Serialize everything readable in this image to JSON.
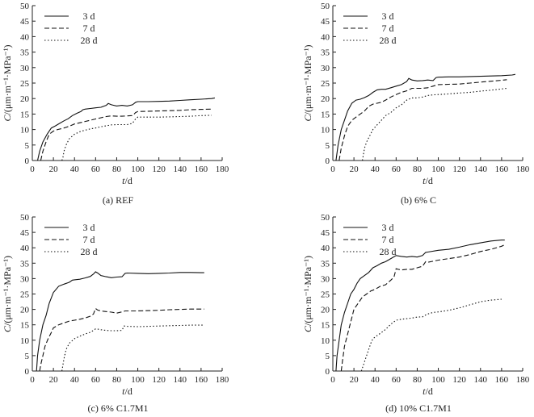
{
  "chart_data": [
    {
      "type": "line",
      "caption": "(a) REF",
      "xlabel": "t/d",
      "ylabel": "C/(μm·m⁻¹·MPa⁻¹)",
      "xlim": [
        0,
        180
      ],
      "ylim": [
        0,
        50
      ],
      "xticks": [
        0,
        20,
        40,
        60,
        80,
        100,
        120,
        140,
        160,
        180
      ],
      "yticks": [
        0,
        5,
        10,
        15,
        20,
        25,
        30,
        35,
        40,
        45,
        50
      ],
      "legend_position": "top-left",
      "series": [
        {
          "name": "3 d",
          "style": "solid",
          "x": [
            5,
            7,
            10,
            14,
            18,
            22,
            26,
            30,
            34,
            38,
            42,
            46,
            48,
            50,
            55,
            60,
            65,
            70,
            72,
            75,
            80,
            85,
            90,
            95,
            98,
            100,
            110,
            120,
            130,
            140,
            150,
            160,
            170,
            173
          ],
          "y": [
            0,
            3,
            6,
            8.5,
            10.5,
            11.2,
            12,
            12.8,
            13.5,
            14.5,
            15.2,
            15.8,
            16.4,
            16.6,
            16.8,
            17,
            17.2,
            17.8,
            18.4,
            18,
            17.6,
            17.8,
            17.6,
            18,
            18.8,
            19,
            19,
            19.1,
            19.2,
            19.4,
            19.6,
            19.8,
            20,
            20.2
          ]
        },
        {
          "name": "7 d",
          "style": "dashed",
          "x": [
            8,
            10,
            13,
            16,
            20,
            24,
            28,
            32,
            36,
            40,
            45,
            50,
            55,
            60,
            65,
            70,
            75,
            80,
            85,
            90,
            95,
            98,
            100,
            110,
            120,
            130,
            140,
            150,
            160,
            170
          ],
          "y": [
            0,
            3,
            6,
            8.5,
            9.5,
            10,
            10.3,
            10.7,
            11.2,
            11.8,
            12.2,
            12.6,
            13,
            13.4,
            13.8,
            14.2,
            14.4,
            14.3,
            14.3,
            14.4,
            14.5,
            15.5,
            15.8,
            15.9,
            16,
            16.1,
            16.2,
            16.4,
            16.5,
            16.6
          ]
        },
        {
          "name": "28 d",
          "style": "dotted",
          "x": [
            28,
            29,
            30,
            32,
            35,
            40,
            45,
            50,
            55,
            60,
            65,
            70,
            75,
            80,
            85,
            90,
            95,
            98,
            100,
            110,
            120,
            130,
            140,
            150,
            160,
            170
          ],
          "y": [
            0,
            1,
            3,
            5,
            7,
            8.5,
            9.3,
            9.8,
            10.2,
            10.5,
            10.9,
            11.2,
            11.5,
            11.6,
            11.6,
            11.6,
            12,
            13.5,
            14,
            14,
            14,
            14.1,
            14.2,
            14.3,
            14.5,
            14.6
          ]
        }
      ]
    },
    {
      "type": "line",
      "caption": "(b) 6% C",
      "xlabel": "t/d",
      "ylabel": "C/(μm·m⁻¹·MPa⁻¹)",
      "xlim": [
        0,
        180
      ],
      "ylim": [
        0,
        50
      ],
      "xticks": [
        0,
        20,
        40,
        60,
        80,
        100,
        120,
        140,
        160,
        180
      ],
      "yticks": [
        0,
        5,
        10,
        15,
        20,
        25,
        30,
        35,
        40,
        45,
        50
      ],
      "legend_position": "top-left",
      "series": [
        {
          "name": "3 d",
          "style": "solid",
          "x": [
            3,
            5,
            8,
            11,
            14,
            18,
            22,
            26,
            30,
            34,
            38,
            42,
            46,
            50,
            55,
            60,
            65,
            70,
            72,
            75,
            80,
            85,
            90,
            95,
            98,
            100,
            110,
            120,
            130,
            140,
            150,
            160,
            170,
            173
          ],
          "y": [
            0,
            5,
            10,
            13,
            16,
            18.5,
            19.5,
            19.8,
            20.3,
            21,
            22,
            22.8,
            23,
            23,
            23.5,
            24,
            24.5,
            25.5,
            26.5,
            26,
            25.7,
            25.8,
            26,
            25.8,
            26.8,
            26.9,
            27,
            27,
            27.1,
            27.2,
            27.3,
            27.4,
            27.6,
            27.8
          ]
        },
        {
          "name": "7 d",
          "style": "dashed",
          "x": [
            6,
            8,
            11,
            14,
            18,
            22,
            26,
            30,
            34,
            38,
            42,
            46,
            50,
            55,
            60,
            65,
            70,
            75,
            80,
            85,
            90,
            95,
            100,
            110,
            120,
            130,
            140,
            150,
            160,
            165
          ],
          "y": [
            0,
            4,
            8,
            11,
            13,
            14,
            15,
            16,
            17.5,
            18.2,
            18.5,
            18.8,
            19.5,
            20.5,
            21.3,
            22,
            22.5,
            23.3,
            23.3,
            23.3,
            23.5,
            24,
            24.5,
            24.6,
            24.7,
            25,
            25.3,
            25.6,
            25.9,
            26.1
          ]
        },
        {
          "name": "28 d",
          "style": "dotted",
          "x": [
            28,
            29,
            30,
            32,
            35,
            38,
            42,
            46,
            50,
            55,
            60,
            65,
            70,
            75,
            80,
            85,
            90,
            95,
            100,
            110,
            120,
            130,
            140,
            150,
            160,
            165
          ],
          "y": [
            0,
            2,
            4,
            6,
            8,
            10,
            11.5,
            13,
            14.5,
            15.5,
            17,
            18,
            19.5,
            20.2,
            20.2,
            20.5,
            21,
            21.2,
            21.3,
            21.5,
            21.8,
            22,
            22.4,
            22.7,
            23.1,
            23.3
          ]
        }
      ]
    },
    {
      "type": "line",
      "caption": "(c) 6% C1.7M1",
      "xlabel": "t/d",
      "ylabel": "C/(μm·m⁻¹·MPa⁻¹)",
      "xlim": [
        0,
        180
      ],
      "ylim": [
        0,
        50
      ],
      "xticks": [
        0,
        20,
        40,
        60,
        80,
        100,
        120,
        140,
        160,
        180
      ],
      "yticks": [
        0,
        5,
        10,
        15,
        20,
        25,
        30,
        35,
        40,
        45,
        50
      ],
      "legend_position": "top-right",
      "series": [
        {
          "name": "3 d",
          "style": "solid",
          "x": [
            4,
            5,
            7,
            10,
            13,
            16,
            20,
            25,
            30,
            35,
            38,
            40,
            45,
            50,
            55,
            58,
            60,
            62,
            65,
            70,
            75,
            80,
            85,
            88,
            90,
            100,
            110,
            120,
            130,
            140,
            150,
            160,
            163
          ],
          "y": [
            0,
            5,
            10,
            15,
            18,
            22,
            25.5,
            27.5,
            28.2,
            28.8,
            29.5,
            29.6,
            29.8,
            30.2,
            30.7,
            31.5,
            32.2,
            31.8,
            31,
            30.6,
            30.3,
            30.5,
            30.6,
            31.7,
            31.8,
            31.7,
            31.6,
            31.7,
            31.8,
            32,
            32,
            31.9,
            31.9
          ]
        },
        {
          "name": "7 d",
          "style": "dashed",
          "x": [
            7,
            8,
            10,
            12,
            15,
            18,
            20,
            25,
            30,
            35,
            40,
            45,
            50,
            55,
            58,
            60,
            62,
            65,
            70,
            75,
            80,
            85,
            88,
            90,
            100,
            110,
            120,
            130,
            140,
            150,
            160,
            163
          ],
          "y": [
            0,
            2,
            5,
            8,
            10.5,
            12.5,
            14,
            15,
            15.6,
            16.2,
            16.5,
            16.8,
            17.2,
            17.8,
            18.5,
            20.3,
            19.8,
            19.5,
            19.3,
            19.1,
            18.8,
            19.2,
            19.5,
            19.5,
            19.5,
            19.6,
            19.7,
            19.9,
            20,
            20.1,
            20.1,
            20.1
          ]
        },
        {
          "name": "28 d",
          "style": "dotted",
          "x": [
            28,
            29,
            30,
            32,
            35,
            40,
            45,
            50,
            55,
            58,
            60,
            62,
            65,
            70,
            75,
            80,
            85,
            87,
            90,
            100,
            110,
            120,
            130,
            140,
            150,
            160,
            163
          ],
          "y": [
            0,
            2,
            4,
            7,
            9,
            10.5,
            11.3,
            12,
            12.6,
            13.2,
            13.7,
            13.6,
            13.4,
            13.2,
            13.1,
            13.1,
            13.2,
            14.6,
            14.5,
            14.4,
            14.5,
            14.6,
            14.7,
            14.8,
            14.9,
            14.9,
            14.9
          ]
        }
      ]
    },
    {
      "type": "line",
      "caption": "(d) 10% C1.7M1",
      "xlabel": "t/d",
      "ylabel": "C/(μm·m⁻¹·MPa⁻¹)",
      "xlim": [
        0,
        180
      ],
      "ylim": [
        0,
        50
      ],
      "xticks": [
        0,
        20,
        40,
        60,
        80,
        100,
        120,
        140,
        160,
        180
      ],
      "yticks": [
        0,
        5,
        10,
        15,
        20,
        25,
        30,
        35,
        40,
        45,
        50
      ],
      "legend_position": "top-right",
      "series": [
        {
          "name": "3 d",
          "style": "solid",
          "x": [
            3,
            4,
            6,
            8,
            11,
            14,
            17,
            20,
            23,
            26,
            30,
            34,
            38,
            42,
            46,
            50,
            55,
            60,
            65,
            70,
            75,
            80,
            85,
            88,
            90,
            100,
            110,
            120,
            130,
            140,
            150,
            160,
            163
          ],
          "y": [
            0,
            5,
            10,
            15,
            19,
            22,
            25,
            26.5,
            28.5,
            30,
            31,
            32,
            33.5,
            34.2,
            35,
            35.5,
            36.5,
            37.5,
            37.2,
            37,
            37.2,
            37,
            37.5,
            38.5,
            38.6,
            39.2,
            39.5,
            40.2,
            41,
            41.6,
            42.2,
            42.5,
            42.5
          ]
        },
        {
          "name": "7 d",
          "style": "dashed",
          "x": [
            8,
            9,
            11,
            14,
            17,
            20,
            24,
            28,
            32,
            36,
            40,
            45,
            50,
            55,
            58,
            60,
            62,
            65,
            70,
            75,
            80,
            85,
            88,
            90,
            100,
            110,
            120,
            130,
            140,
            150,
            160,
            163
          ],
          "y": [
            0,
            3,
            8,
            12,
            16,
            20,
            22,
            24,
            25,
            26,
            26.5,
            27.5,
            28,
            29.5,
            30.5,
            33.2,
            33,
            32.8,
            33,
            33,
            33.5,
            34,
            35.5,
            35.3,
            36,
            36.5,
            37,
            37.8,
            38.8,
            39.5,
            40.5,
            41
          ]
        },
        {
          "name": "28 d",
          "style": "dotted",
          "x": [
            27,
            28,
            30,
            33,
            36,
            38,
            42,
            46,
            50,
            55,
            60,
            65,
            70,
            75,
            80,
            85,
            88,
            90,
            95,
            100,
            110,
            120,
            130,
            140,
            150,
            160
          ],
          "y": [
            0,
            1,
            3,
            6,
            9,
            10.5,
            11.5,
            12.5,
            13.5,
            15.2,
            16.5,
            16.8,
            17,
            17.2,
            17.5,
            17.6,
            18.2,
            18.5,
            19,
            19.2,
            19.7,
            20.5,
            21.5,
            22.5,
            23,
            23.3
          ]
        }
      ]
    }
  ]
}
